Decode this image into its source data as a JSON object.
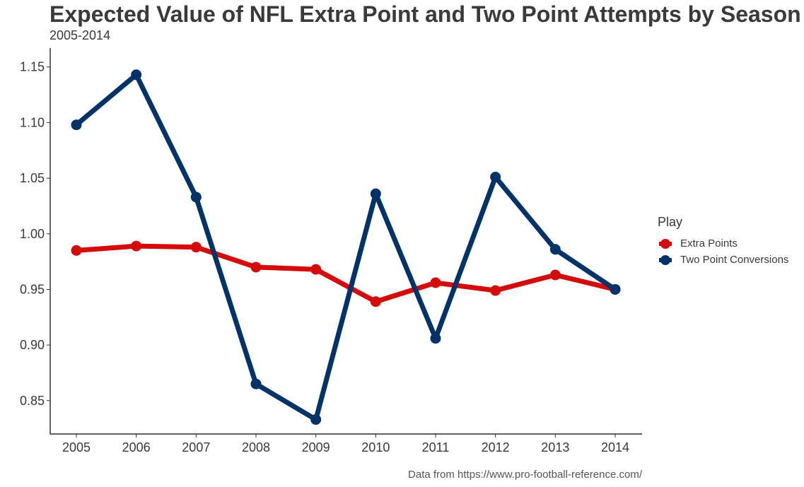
{
  "chart_data": {
    "type": "line",
    "title": "Expected Value of NFL Extra Point and Two Point Attempts by Season",
    "subtitle": "2005-2014",
    "caption": "Data from https://www.pro-football-reference.com/",
    "xlabel": "",
    "ylabel": "",
    "x": [
      2005,
      2006,
      2007,
      2008,
      2009,
      2010,
      2011,
      2012,
      2013,
      2014
    ],
    "x_tick_labels": [
      "2005",
      "2006",
      "2007",
      "2008",
      "2009",
      "2010",
      "2011",
      "2012",
      "2013",
      "2014"
    ],
    "y_ticks": [
      0.85,
      0.9,
      0.95,
      1.0,
      1.05,
      1.1,
      1.15
    ],
    "y_tick_labels": [
      "0.85",
      "0.90",
      "0.95",
      "1.00",
      "1.05",
      "1.10",
      "1.15"
    ],
    "ylim": [
      0.82,
      1.167
    ],
    "grid": false,
    "legend": {
      "title": "Play",
      "position": "right"
    },
    "series": [
      {
        "name": "Extra Points",
        "color": "#d50a0a",
        "values": [
          0.985,
          0.989,
          0.988,
          0.97,
          0.968,
          0.939,
          0.956,
          0.949,
          0.963,
          0.95
        ]
      },
      {
        "name": "Two Point Conversions",
        "color": "#013369",
        "values": [
          1.098,
          1.143,
          1.033,
          0.865,
          0.833,
          1.036,
          0.906,
          1.051,
          0.986,
          0.95
        ]
      }
    ]
  }
}
